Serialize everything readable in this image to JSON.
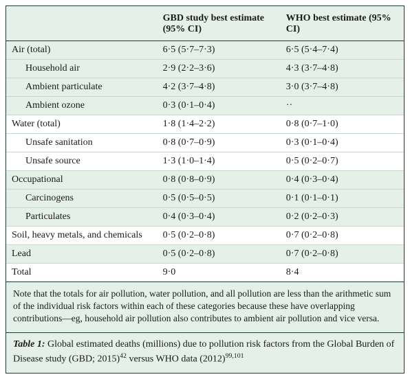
{
  "table": {
    "columns": {
      "blank": "",
      "gbd": "GBD study best estimate (95% CI)",
      "who": "WHO best estimate (95% CI)"
    },
    "rows": [
      {
        "label": "Air (total)",
        "gbd": "6·5 (5·7–7·3)",
        "who": "6·5 (5·4–7·4)",
        "indent": false,
        "alt": false
      },
      {
        "label": "Household air",
        "gbd": "2·9 (2·2–3·6)",
        "who": "4·3 (3·7–4·8)",
        "indent": true,
        "alt": false
      },
      {
        "label": "Ambient particulate",
        "gbd": "4·2 (3·7–4·8)",
        "who": "3·0 (3·7–4·8)",
        "indent": true,
        "alt": false
      },
      {
        "label": "Ambient ozone",
        "gbd": "0·3 (0·1–0·4)",
        "who": "··",
        "indent": true,
        "alt": false
      },
      {
        "label": "Water (total)",
        "gbd": "1·8 (1·4–2·2)",
        "who": "0·8 (0·7–1·0)",
        "indent": false,
        "alt": true
      },
      {
        "label": "Unsafe sanitation",
        "gbd": "0·8 (0·7–0·9)",
        "who": "0·3 (0·1–0·4)",
        "indent": true,
        "alt": true
      },
      {
        "label": "Unsafe source",
        "gbd": "1·3 (1·0–1·4)",
        "who": "0·5 (0·2–0·7)",
        "indent": true,
        "alt": true
      },
      {
        "label": "Occupational",
        "gbd": "0·8 (0·8–0·9)",
        "who": "0·4 (0·3–0·4)",
        "indent": false,
        "alt": false
      },
      {
        "label": "Carcinogens",
        "gbd": "0·5 (0·5–0·5)",
        "who": "0·1 (0·1–0·1)",
        "indent": true,
        "alt": false
      },
      {
        "label": "Particulates",
        "gbd": "0·4 (0·3–0·4)",
        "who": "0·2 (0·2–0·3)",
        "indent": true,
        "alt": false
      },
      {
        "label": "Soil, heavy metals, and chemicals",
        "gbd": "0·5 (0·2–0·8)",
        "who": "0·7 (0·2–0·8)",
        "indent": false,
        "alt": true
      },
      {
        "label": "Lead",
        "gbd": "0·5 (0·2–0·8)",
        "who": "0·7 (0·2–0·8)",
        "indent": false,
        "alt": false
      },
      {
        "label": "Total",
        "gbd": "9·0",
        "who": "8·4",
        "indent": false,
        "alt": true,
        "total": true
      }
    ],
    "note": "Note that the totals for air pollution, water pollution, and all pollution are less than the arithmetic sum of the individual risk factors within each of these categories because these have overlapping contributions—eg, household air pollution also contributes to ambient air pollution and vice versa.",
    "caption_lead": "Table 1:",
    "caption_rest_pre": " Global estimated deaths (millions) due to pollution risk factors from the Global Burden of Disease study (GBD; 2015)",
    "caption_sup1": "42",
    "caption_mid": " versus WHO data (2012)",
    "caption_sup2": "99,101"
  },
  "style": {
    "bg_panel": "#e4f0e8",
    "bg_alt": "#ffffff",
    "border_dark": "#1a3a3a",
    "border_light": "#c9d9ce",
    "text": "#1a1a1a"
  }
}
